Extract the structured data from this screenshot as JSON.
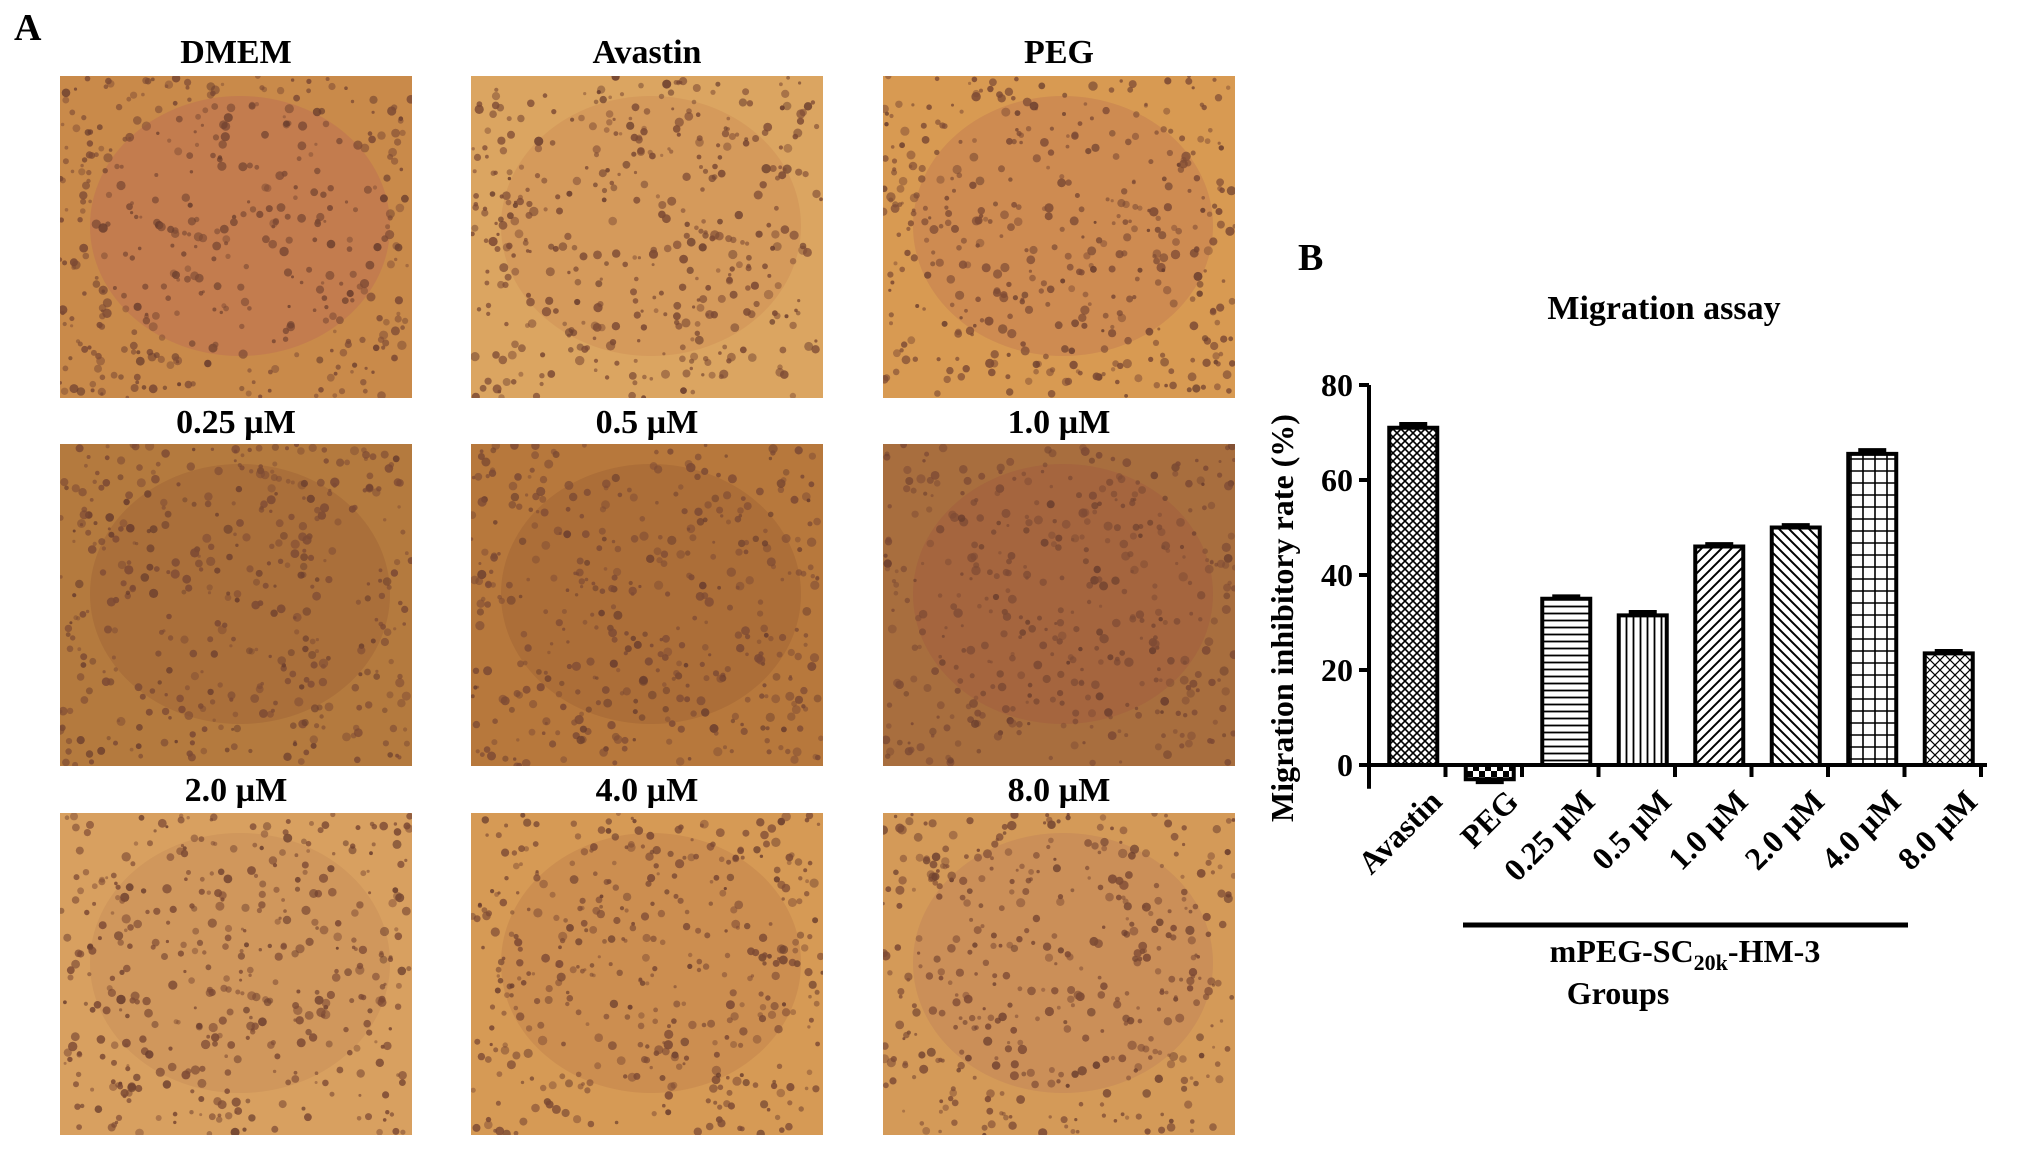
{
  "panels": {
    "a": "A",
    "b": "B"
  },
  "images": [
    {
      "label": "DMEM",
      "tone": "#c98a4a",
      "tint": "#b5525a"
    },
    {
      "label": "Avastin",
      "tone": "#dba561",
      "tint": "#c47b4a"
    },
    {
      "label": "PEG",
      "tone": "#d89a52",
      "tint": "#b06050"
    },
    {
      "label": "0.25 µM",
      "tone": "#b47a3e",
      "tint": "#8a5030"
    },
    {
      "label": "0.5 µM",
      "tone": "#b7783c",
      "tint": "#8c4e2c"
    },
    {
      "label": "1.0 µM",
      "tone": "#a86e3e",
      "tint": "#9a4a40"
    },
    {
      "label": "2.0 µM",
      "tone": "#d8a060",
      "tint": "#b87a50"
    },
    {
      "label": "4.0 µM",
      "tone": "#d69a55",
      "tint": "#b06b45"
    },
    {
      "label": "8.0 µM",
      "tone": "#d49a58",
      "tint": "#b07058"
    }
  ],
  "chart_data": {
    "type": "bar",
    "title": "Migration assay",
    "ylabel": "Migration inhibitory rate (%)",
    "xlabel": "Groups",
    "group_label": "mPEG-SC20k-HM-3",
    "group_label_parts": {
      "pre": "mPEG-SC",
      "sub": "20k",
      "post": "-HM-3"
    },
    "categories": [
      "Avastin",
      "PEG",
      "0.25 µM",
      "0.5 µM",
      "1.0 µM",
      "2.0 µM",
      "4.0 µM",
      "8.0 µM"
    ],
    "values": [
      71,
      -3,
      35,
      31.5,
      46,
      50,
      65.5,
      23.5
    ],
    "errors": [
      0.8,
      0.6,
      0.5,
      0.7,
      0.5,
      0.5,
      0.8,
      0.5
    ],
    "patterns": [
      "crosshatch",
      "checker",
      "horizontal",
      "vertical",
      "diag-right",
      "diag-left",
      "grid",
      "diag-cross"
    ],
    "ylim": [
      -5,
      80
    ],
    "yticks": [
      0,
      20,
      40,
      60,
      80
    ],
    "grid": false
  }
}
